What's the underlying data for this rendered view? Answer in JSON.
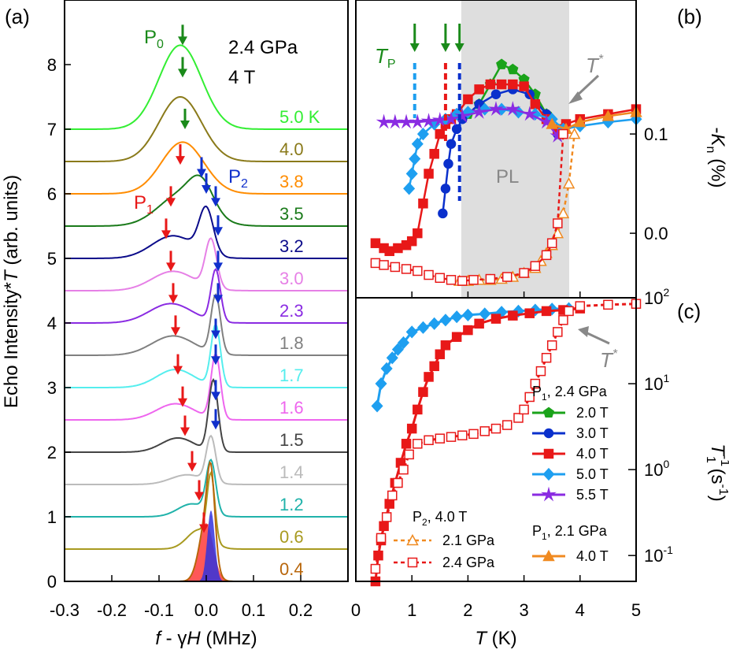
{
  "panels": {
    "a": {
      "tag": "(a)",
      "condition_pressure": "2.4 GPa",
      "condition_field": "4 T",
      "peak_labels": {
        "p0": "P0",
        "p1": "P1",
        "p2": "P2"
      },
      "ylabel": "Echo Intensity*T (arb. units)",
      "xlabel": "f - γH (MHz)"
    },
    "b": {
      "tag": "(b)",
      "tp_label": "TP",
      "tstar_label": "T*",
      "region_label": "PL",
      "ylabel": "-Kn (%)"
    },
    "c": {
      "tag": "(c)",
      "tstar_label": "T*",
      "ylabel": "T1-1 (s-1)",
      "xlabel": "T (K)",
      "legend_header_1": "P1, 2.4 GPa",
      "legend_header_2": "P1, 2.1 GPa",
      "legend_header_3": "P2, 4.0 T"
    }
  },
  "chart_data": [
    {
      "panel": "a",
      "type": "line",
      "title": "",
      "xlabel": "f - γH (MHz)",
      "ylabel": "Echo Intensity*T (arb. units)",
      "xlim": [
        -0.3,
        0.3
      ],
      "ylim": [
        0,
        9
      ],
      "xticks": [
        -0.3,
        -0.2,
        -0.1,
        0.0,
        0.1,
        0.2
      ],
      "yticks": [
        0,
        1,
        2,
        3,
        4,
        5,
        6,
        7,
        8
      ],
      "series": [
        {
          "name": "5.0 K",
          "color": "#33ee33",
          "offset": 7.0,
          "peaks": [
            [
              -0.055,
              0.045,
              1.3
            ]
          ]
        },
        {
          "name": "4.0",
          "color": "#8a7a1a",
          "offset": 6.5,
          "peaks": [
            [
              -0.055,
              0.045,
              1.0
            ]
          ]
        },
        {
          "name": "3.8",
          "color": "#ff8c00",
          "offset": 6.0,
          "peaks": [
            [
              -0.05,
              0.045,
              0.8
            ]
          ]
        },
        {
          "name": "3.5",
          "color": "#1a7a1a",
          "offset": 5.5,
          "peaks": [
            [
              -0.05,
              0.05,
              0.5
            ],
            [
              -0.01,
              0.025,
              0.4
            ]
          ]
        },
        {
          "name": "3.2",
          "color": "#0b0b8a",
          "offset": 5.0,
          "peaks": [
            [
              -0.07,
              0.045,
              0.35
            ],
            [
              0.0,
              0.015,
              0.7
            ]
          ]
        },
        {
          "name": "3.0",
          "color": "#e680e6",
          "offset": 4.5,
          "peaks": [
            [
              -0.07,
              0.045,
              0.3
            ],
            [
              0.01,
              0.012,
              0.75
            ]
          ]
        },
        {
          "name": "2.3",
          "color": "#8a2be2",
          "offset": 4.0,
          "peaks": [
            [
              -0.075,
              0.045,
              0.3
            ],
            [
              0.02,
              0.01,
              0.8
            ]
          ]
        },
        {
          "name": "1.8",
          "color": "#808080",
          "offset": 3.5,
          "peaks": [
            [
              -0.07,
              0.045,
              0.3
            ],
            [
              0.02,
              0.01,
              0.9
            ]
          ]
        },
        {
          "name": "1.7",
          "color": "#55eeee",
          "offset": 3.0,
          "peaks": [
            [
              -0.065,
              0.04,
              0.28
            ],
            [
              0.02,
              0.01,
              0.95
            ]
          ]
        },
        {
          "name": "1.6",
          "color": "#ee66ee",
          "offset": 2.5,
          "peaks": [
            [
              -0.065,
              0.04,
              0.25
            ],
            [
              0.02,
              0.01,
              1.0
            ]
          ]
        },
        {
          "name": "1.5",
          "color": "#444444",
          "offset": 2.0,
          "peaks": [
            [
              -0.06,
              0.035,
              0.22
            ],
            [
              0.015,
              0.01,
              1.1
            ]
          ]
        },
        {
          "name": "1.4",
          "color": "#bbbbbb",
          "offset": 1.5,
          "peaks": [
            [
              -0.04,
              0.035,
              0.15
            ],
            [
              0.01,
              0.01,
              0.7
            ]
          ]
        },
        {
          "name": "1.2",
          "color": "#20b2aa",
          "offset": 1.0,
          "peaks": [
            [
              -0.03,
              0.03,
              0.2
            ],
            [
              0.01,
              0.01,
              0.8
            ]
          ]
        },
        {
          "name": "0.6",
          "color": "#a89a20",
          "offset": 0.5,
          "peaks": [
            [
              -0.015,
              0.025,
              0.3
            ],
            [
              0.01,
              0.008,
              1.0
            ]
          ]
        },
        {
          "name": "0.4",
          "color": "#b8660b",
          "offset": 0.0,
          "peaks": [
            [
              0.0,
              0.015,
              0.9
            ],
            [
              0.01,
              0.008,
              1.1
            ]
          ]
        }
      ],
      "p1_arrows": [
        [
          -0.055,
          6.45
        ],
        [
          -0.075,
          5.8
        ],
        [
          -0.085,
          5.3
        ],
        [
          -0.075,
          4.8
        ],
        [
          -0.07,
          4.3
        ],
        [
          -0.065,
          3.8
        ],
        [
          -0.06,
          3.2
        ],
        [
          -0.05,
          2.7
        ],
        [
          -0.045,
          2.25
        ],
        [
          -0.03,
          1.7
        ],
        [
          -0.015,
          1.25
        ],
        [
          -0.005,
          0.75
        ]
      ],
      "p2_arrows": [
        [
          -0.01,
          6.25
        ],
        [
          0.0,
          6.0
        ],
        [
          0.02,
          5.8
        ],
        [
          0.025,
          5.35
        ],
        [
          0.025,
          4.8
        ],
        [
          0.025,
          4.3
        ],
        [
          0.02,
          3.75
        ],
        [
          0.02,
          3.35
        ],
        [
          0.02,
          2.8
        ],
        [
          0.02,
          2.35
        ]
      ],
      "p0_arrows": [
        [
          -0.055,
          8.3
        ],
        [
          -0.055,
          7.8
        ],
        [
          -0.05,
          7.0
        ]
      ]
    },
    {
      "panel": "b",
      "type": "line",
      "xlabel": "T (K)",
      "ylabel": "-Kn (%)",
      "xlim": [
        0,
        5
      ],
      "ylim": [
        -0.065,
        0.235
      ],
      "yticks": [
        0.0,
        0.1
      ],
      "tp_arrows_x": [
        1.05,
        1.6,
        1.85
      ],
      "shaded_region": [
        1.85,
        3.75
      ],
      "series": [
        {
          "name": "2.0 T",
          "color": "#1aa31a",
          "marker": "pentagon",
          "x": [
            2.0,
            2.2,
            2.4,
            2.6,
            2.8,
            3.0,
            3.2,
            3.4,
            3.6
          ],
          "y": [
            0.12,
            0.13,
            0.15,
            0.17,
            0.165,
            0.155,
            0.14,
            0.12,
            0.105
          ]
        },
        {
          "name": "3.0 T",
          "color": "#0a30cc",
          "marker": "circle",
          "x": [
            1.55,
            1.6,
            1.65,
            1.7,
            1.8,
            1.9,
            2.2,
            2.5,
            2.8,
            3.1,
            3.4,
            3.6
          ],
          "y": [
            0.02,
            0.045,
            0.07,
            0.09,
            0.105,
            0.115,
            0.13,
            0.14,
            0.145,
            0.14,
            0.12,
            0.1
          ]
        },
        {
          "name": "4.0 T",
          "color": "#e81818",
          "marker": "square",
          "x": [
            0.35,
            0.5,
            0.6,
            0.75,
            0.9,
            1.0,
            1.1,
            1.2,
            1.3,
            1.4,
            1.5,
            1.6,
            1.7,
            1.8,
            2.0,
            2.2,
            2.4,
            2.6,
            2.8,
            3.0,
            3.2,
            3.4,
            3.6,
            3.75,
            4.0,
            4.5,
            5.0
          ],
          "y": [
            -0.01,
            -0.015,
            -0.018,
            -0.015,
            -0.012,
            -0.008,
            0.0,
            0.03,
            0.06,
            0.08,
            0.1,
            0.11,
            0.115,
            0.12,
            0.135,
            0.145,
            0.15,
            0.15,
            0.15,
            0.148,
            0.13,
            0.115,
            0.105,
            0.11,
            0.115,
            0.12,
            0.125
          ]
        },
        {
          "name": "5.0 T",
          "color": "#1e9ff0",
          "marker": "diamond",
          "x": [
            0.95,
            1.0,
            1.05,
            1.1,
            1.2,
            1.4,
            1.6,
            1.8,
            2.0,
            2.3,
            2.6,
            2.9,
            3.2,
            3.5,
            3.7,
            4.0,
            4.5,
            5.0
          ],
          "y": [
            0.045,
            0.06,
            0.075,
            0.09,
            0.1,
            0.11,
            0.115,
            0.12,
            0.122,
            0.125,
            0.125,
            0.122,
            0.12,
            0.115,
            0.105,
            0.108,
            0.112,
            0.115
          ]
        },
        {
          "name": "5.5 T",
          "color": "#8a2be2",
          "marker": "star",
          "x": [
            0.5,
            0.7,
            0.9,
            1.1,
            1.3,
            1.5,
            1.7,
            1.9,
            2.2,
            2.5,
            2.8,
            3.1,
            3.4,
            3.6
          ],
          "y": [
            0.112,
            0.112,
            0.112,
            0.112,
            0.113,
            0.114,
            0.115,
            0.118,
            0.122,
            0.125,
            0.125,
            0.12,
            0.112,
            0.098
          ]
        },
        {
          "name": "P1, 2.1 GPa 4.0 T",
          "color": "#f08a20",
          "marker": "triangle",
          "x": [
            3.5,
            3.75,
            4.0,
            4.5,
            5.0
          ],
          "y": [
            0.11,
            0.105,
            0.112,
            0.118,
            0.122
          ]
        },
        {
          "name": "P2 2.1 GPa",
          "color": "#f08a20",
          "marker": "triangle-open",
          "dashed": true,
          "x": [
            1.85,
            2.0,
            2.2,
            2.4,
            2.6,
            2.8,
            3.0,
            3.2,
            3.3,
            3.4,
            3.5,
            3.6,
            3.7,
            3.8,
            3.9
          ],
          "y": [
            -0.048,
            -0.048,
            -0.047,
            -0.047,
            -0.046,
            -0.044,
            -0.04,
            -0.035,
            -0.028,
            -0.02,
            -0.012,
            0.0,
            0.02,
            0.05,
            0.1
          ]
        },
        {
          "name": "P2 2.4 GPa",
          "color": "#e81818",
          "marker": "square-open",
          "dashed": true,
          "x": [
            0.35,
            0.5,
            0.7,
            0.9,
            1.1,
            1.3,
            1.5,
            1.7,
            1.9,
            2.1,
            2.4,
            2.7,
            3.0,
            3.2,
            3.4,
            3.5,
            3.6,
            3.7
          ],
          "y": [
            -0.03,
            -0.032,
            -0.034,
            -0.036,
            -0.038,
            -0.042,
            -0.045,
            -0.047,
            -0.048,
            -0.047,
            -0.046,
            -0.044,
            -0.04,
            -0.033,
            -0.022,
            -0.01,
            0.01,
            0.1
          ]
        }
      ]
    },
    {
      "panel": "c",
      "type": "line",
      "xlabel": "T (K)",
      "ylabel": "T1-1 (s-1)",
      "xlim": [
        0,
        5
      ],
      "xticks": [
        0,
        1,
        2,
        3,
        4,
        5
      ],
      "ylim_log": [
        0.05,
        100
      ],
      "series": [
        {
          "name": "5.0 T",
          "color": "#1e9ff0",
          "marker": "diamond",
          "x": [
            0.38,
            0.45,
            0.55,
            0.65,
            0.75,
            0.85,
            1.0,
            1.2,
            1.4,
            1.6,
            1.8,
            2.0,
            2.3,
            2.6,
            2.9,
            3.2,
            3.5,
            3.8
          ],
          "y": [
            5.5,
            10,
            15,
            20,
            25,
            30,
            40,
            45,
            50,
            55,
            60,
            63,
            65,
            68,
            70,
            72,
            74,
            75
          ]
        },
        {
          "name": "4.0 T",
          "color": "#e81818",
          "marker": "square",
          "x": [
            0.35,
            0.4,
            0.45,
            0.5,
            0.6,
            0.7,
            0.8,
            0.9,
            1.0,
            1.1,
            1.2,
            1.3,
            1.4,
            1.5,
            1.6,
            1.8,
            2.0,
            2.2,
            2.5,
            2.8,
            3.1,
            3.4,
            3.7,
            4.0
          ],
          "y": [
            0.05,
            0.1,
            0.15,
            0.22,
            0.4,
            0.7,
            1.2,
            2.0,
            3.0,
            5.0,
            8.0,
            12,
            16,
            22,
            28,
            35,
            42,
            50,
            57,
            62,
            66,
            70,
            72,
            75
          ]
        },
        {
          "name": "P2 2.4 GPa",
          "color": "#e81818",
          "marker": "square-open",
          "dashed": true,
          "x": [
            0.35,
            0.45,
            0.55,
            0.65,
            0.75,
            0.85,
            0.95,
            1.1,
            1.3,
            1.5,
            1.7,
            1.9,
            2.1,
            2.3,
            2.5,
            2.7,
            2.9,
            3.0,
            3.1,
            3.2,
            3.3,
            3.4,
            3.5,
            3.6,
            3.7,
            3.8,
            4.0,
            4.5,
            5.0
          ],
          "y": [
            0.07,
            0.16,
            0.28,
            0.5,
            0.7,
            1.0,
            1.5,
            2.0,
            2.2,
            2.3,
            2.4,
            2.5,
            2.6,
            2.8,
            3.0,
            3.3,
            4.0,
            5.0,
            7.0,
            10,
            14,
            20,
            28,
            40,
            55,
            70,
            80,
            83,
            85
          ]
        }
      ]
    }
  ],
  "labels_a": {
    "s50": "5.0 K",
    "s40": "4.0",
    "s38": "3.8",
    "s35": "3.5",
    "s32": "3.2",
    "s30": "3.0",
    "s23": "2.3",
    "s18": "1.8",
    "s17": "1.7",
    "s16": "1.6",
    "s15": "1.5",
    "s14": "1.4",
    "s12": "1.2",
    "s06": "0.6",
    "s04": "0.4"
  },
  "ticks": {
    "a_x": [
      "-0.3",
      "-0.2",
      "-0.1",
      "0.0",
      "0.1",
      "0.2"
    ],
    "a_y": [
      "0",
      "1",
      "2",
      "3",
      "4",
      "5",
      "6",
      "7",
      "8"
    ],
    "b_y": [
      "0.0",
      "0.1"
    ],
    "c_x": [
      "0",
      "1",
      "2",
      "3",
      "4",
      "5"
    ]
  },
  "legend": {
    "g1": "2.0 T",
    "g2": "3.0 T",
    "g3": "4.0 T",
    "g4": "5.0 T",
    "g5": "5.5 T",
    "g6": "4.0 T",
    "p2a": "2.1 GPa",
    "p2b": "2.4 GPa"
  }
}
